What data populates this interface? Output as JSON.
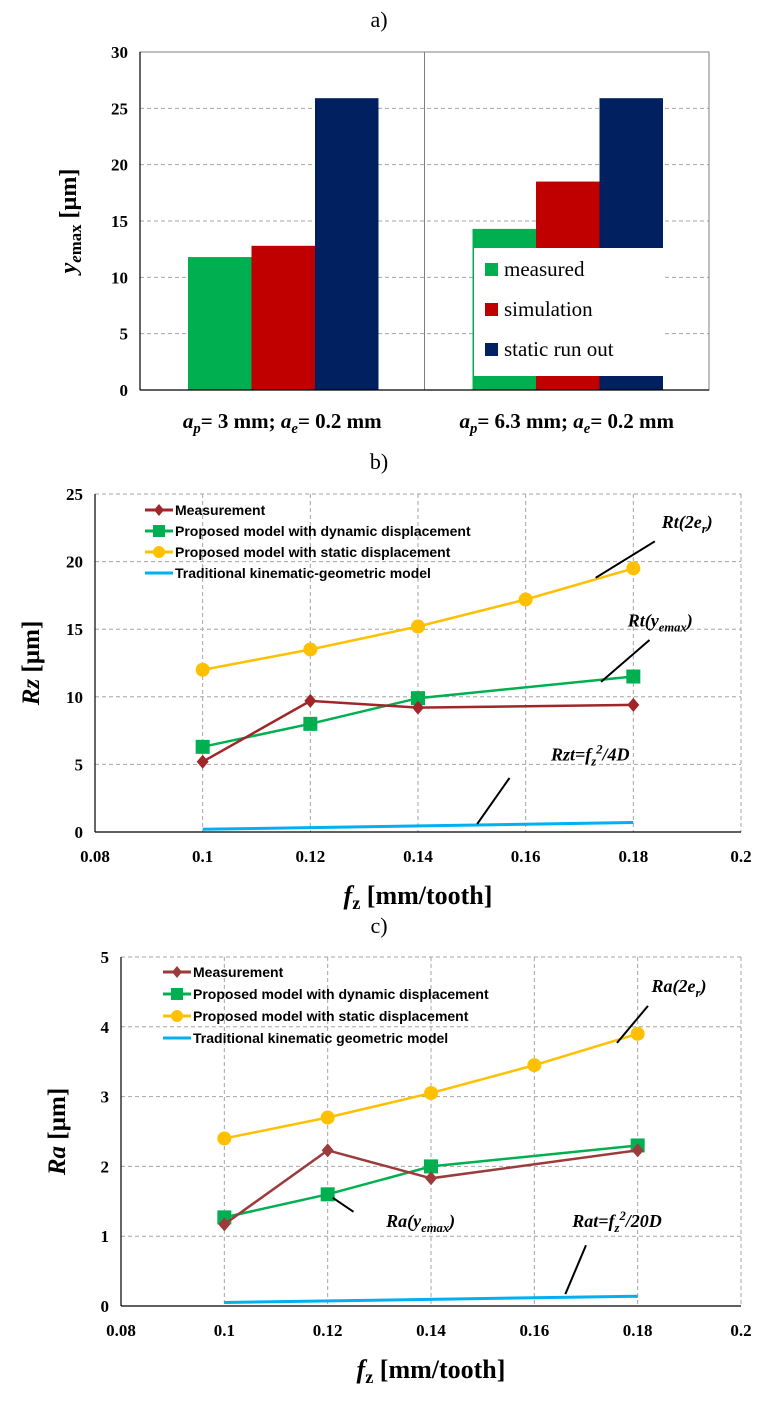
{
  "chart_data": [
    {
      "id": "a",
      "panel_label": "a)",
      "type": "bar",
      "categories": [
        {
          "parts": [
            [
              "a",
              "i"
            ],
            [
              "p",
              "sub-i"
            ],
            [
              "= 3 mm; ",
              "n"
            ],
            [
              "a",
              "i"
            ],
            [
              "e",
              "sub-i"
            ],
            [
              "= 0.2 mm",
              "n"
            ]
          ]
        },
        {
          "parts": [
            [
              "a",
              "i"
            ],
            [
              "p",
              "sub-i"
            ],
            [
              "= 6.3 mm; ",
              "n"
            ],
            [
              "a",
              "i"
            ],
            [
              "e",
              "sub-i"
            ],
            [
              "= 0.2 mm",
              "n"
            ]
          ]
        }
      ],
      "series": [
        {
          "name": "measured",
          "color": "#00b050",
          "values": [
            11.8,
            14.3
          ]
        },
        {
          "name": "simulation",
          "color": "#c00000",
          "values": [
            12.8,
            18.5
          ]
        },
        {
          "name": "static run out",
          "color": "#002060",
          "values": [
            25.9,
            25.9
          ]
        }
      ],
      "ylim": [
        0,
        30
      ],
      "yticks": [
        "0",
        "5",
        "10",
        "15",
        "20",
        "25",
        "30"
      ],
      "ylabel": {
        "parts": [
          [
            "y",
            "i"
          ],
          [
            "e",
            "sub-i"
          ],
          [
            "max",
            "sub-n"
          ],
          [
            " [µm]",
            "n"
          ]
        ]
      },
      "grid": true,
      "legend_position": "bottom-right"
    },
    {
      "id": "b",
      "panel_label": "b)",
      "type": "line",
      "x": [
        0.1,
        0.12,
        0.14,
        0.16,
        0.18
      ],
      "xlim": [
        0.08,
        0.2
      ],
      "xticks": [
        "0.08",
        "0.1",
        "0.12",
        "0.14",
        "0.16",
        "0.18",
        "0.2"
      ],
      "ylim": [
        0,
        25
      ],
      "yticks": [
        "0",
        "5",
        "10",
        "15",
        "20",
        "25"
      ],
      "xlabel": {
        "parts": [
          [
            "f",
            "i"
          ],
          [
            "z",
            "sub-b"
          ],
          [
            " [mm/tooth]",
            "n"
          ]
        ]
      },
      "ylabel": {
        "parts": [
          [
            "Rz",
            "i"
          ],
          [
            " [µm]",
            "n"
          ]
        ]
      },
      "grid": true,
      "legend_position": "top-left",
      "series": [
        {
          "name": "Measurement",
          "color": "#a0262a",
          "marker": "diamond",
          "x": [
            0.1,
            0.12,
            0.14,
            0.18
          ],
          "values": [
            5.2,
            9.7,
            9.2,
            9.4
          ]
        },
        {
          "name": "Proposed model with dynamic displacement",
          "color": "#00b050",
          "marker": "square",
          "x": [
            0.1,
            0.12,
            0.14,
            0.18
          ],
          "values": [
            6.3,
            8.0,
            9.9,
            11.5
          ]
        },
        {
          "name": "Proposed model with static displacement",
          "color": "#ffc000",
          "marker": "circle",
          "x": [
            0.1,
            0.12,
            0.14,
            0.16,
            0.18
          ],
          "values": [
            12.0,
            13.5,
            15.2,
            17.2,
            19.5
          ]
        },
        {
          "name": "Traditional kinematic-geometric model",
          "color": "#00b0f0",
          "marker": "none",
          "x": [
            0.1,
            0.18
          ],
          "values": [
            0.2,
            0.7
          ]
        }
      ],
      "annotations": [
        {
          "parts": [
            [
              "Rt(2e",
              "n"
            ],
            [
              "r",
              "sub"
            ],
            [
              ")",
              "n"
            ]
          ],
          "tx": 0.19,
          "ty": 22.5,
          "lx1": 0.184,
          "ly1": 21.5,
          "lx2": 0.173,
          "ly2": 18.8
        },
        {
          "parts": [
            [
              "Rt(y",
              "n"
            ],
            [
              "emax",
              "sub"
            ],
            [
              ")",
              "n"
            ]
          ],
          "tx": 0.185,
          "ty": 15.2,
          "lx1": 0.183,
          "ly1": 14.2,
          "lx2": 0.174,
          "ly2": 11.1
        },
        {
          "parts": [
            [
              "Rzt=f",
              "n"
            ],
            [
              "z",
              "sub"
            ],
            [
              "2",
              "sup"
            ],
            [
              "/4D",
              "n"
            ]
          ],
          "tx": 0.172,
          "ty": 5.3,
          "lx1": 0.157,
          "ly1": 4.0,
          "lx2": 0.151,
          "ly2": 0.6
        }
      ]
    },
    {
      "id": "c",
      "panel_label": "c)",
      "type": "line",
      "x": [
        0.1,
        0.12,
        0.14,
        0.16,
        0.18
      ],
      "xlim": [
        0.08,
        0.2
      ],
      "xticks": [
        "0.08",
        "0.1",
        "0.12",
        "0.14",
        "0.16",
        "0.18",
        "0.2"
      ],
      "ylim": [
        0,
        5
      ],
      "yticks": [
        "0",
        "1",
        "2",
        "3",
        "4",
        "5"
      ],
      "xlabel": {
        "parts": [
          [
            "f",
            "i"
          ],
          [
            "z",
            "sub-b"
          ],
          [
            " [mm/tooth]",
            "n"
          ]
        ]
      },
      "ylabel": {
        "parts": [
          [
            "Ra",
            "i"
          ],
          [
            " [µm]",
            "n"
          ]
        ]
      },
      "grid": true,
      "legend_position": "top-left",
      "series": [
        {
          "name": "Measurement",
          "color": "#9b3b3b",
          "marker": "diamond",
          "x": [
            0.1,
            0.12,
            0.14,
            0.18
          ],
          "values": [
            1.17,
            2.23,
            1.83,
            2.23
          ]
        },
        {
          "name": "Proposed model with dynamic displacement",
          "color": "#00b050",
          "marker": "square",
          "x": [
            0.1,
            0.12,
            0.14,
            0.18
          ],
          "values": [
            1.27,
            1.6,
            2.0,
            2.3
          ]
        },
        {
          "name": "Proposed model with static displacement",
          "color": "#ffc000",
          "marker": "circle",
          "x": [
            0.1,
            0.12,
            0.14,
            0.16,
            0.18
          ],
          "values": [
            2.4,
            2.7,
            3.05,
            3.45,
            3.9
          ]
        },
        {
          "name": "Traditional kinematic geometric model",
          "color": "#00b0f0",
          "marker": "none",
          "x": [
            0.1,
            0.18
          ],
          "values": [
            0.05,
            0.14
          ]
        }
      ],
      "annotations": [
        {
          "parts": [
            [
              "Ra(2e",
              "n"
            ],
            [
              "r",
              "sub"
            ],
            [
              ")",
              "n"
            ]
          ],
          "tx": 0.188,
          "ty": 4.5,
          "lx1": 0.182,
          "ly1": 4.3,
          "lx2": 0.176,
          "ly2": 3.77
        },
        {
          "parts": [
            [
              "Ra(y",
              "n"
            ],
            [
              "emax",
              "sub"
            ],
            [
              ")",
              "n"
            ]
          ],
          "tx": 0.138,
          "ty": 1.13,
          "lx1": 0.125,
          "ly1": 1.35,
          "lx2": 0.121,
          "ly2": 1.55
        },
        {
          "parts": [
            [
              "Rat=f",
              "n"
            ],
            [
              "z",
              "sub"
            ],
            [
              "2",
              "sup"
            ],
            [
              "/20D",
              "n"
            ]
          ],
          "tx": 0.176,
          "ty": 1.13,
          "lx1": 0.17,
          "ly1": 0.87,
          "lx2": 0.166,
          "ly2": 0.17
        }
      ]
    }
  ]
}
